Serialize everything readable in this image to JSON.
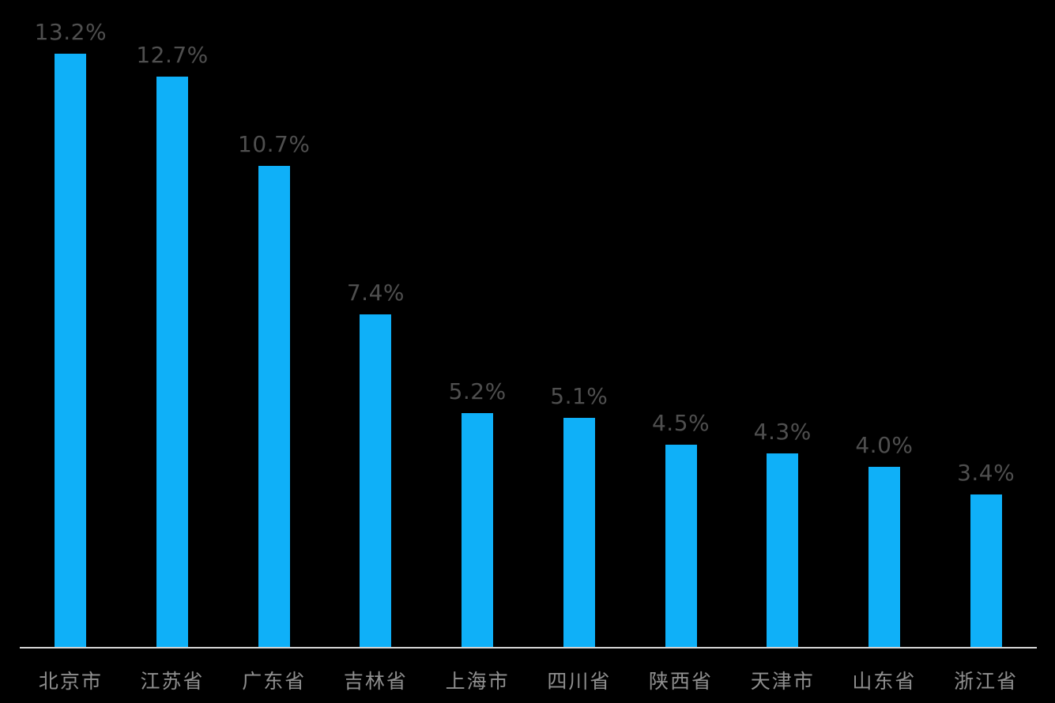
{
  "chart_data": {
    "type": "bar",
    "title": "",
    "xlabel": "",
    "ylabel": "",
    "categories": [
      "北京市",
      "江苏省",
      "广东省",
      "吉林省",
      "上海市",
      "四川省",
      "陕西省",
      "天津市",
      "山东省",
      "浙江省"
    ],
    "values": [
      13.2,
      12.7,
      10.7,
      7.4,
      5.2,
      5.1,
      4.5,
      4.3,
      4.0,
      3.4
    ],
    "data_labels": [
      "13.2%",
      "12.7%",
      "10.7%",
      "7.4%",
      "5.2%",
      "5.1%",
      "4.5%",
      "4.3%",
      "4.0%",
      "3.4%"
    ],
    "ylim": [
      0,
      14.4
    ],
    "grid": false,
    "legend_position": "none",
    "colors": {
      "background": "#000000",
      "bar": "#0FB0F8",
      "data_label": "#4F4F4F",
      "tick_label": "#8F8F8F",
      "axis_line": "#D6D6D6"
    }
  }
}
